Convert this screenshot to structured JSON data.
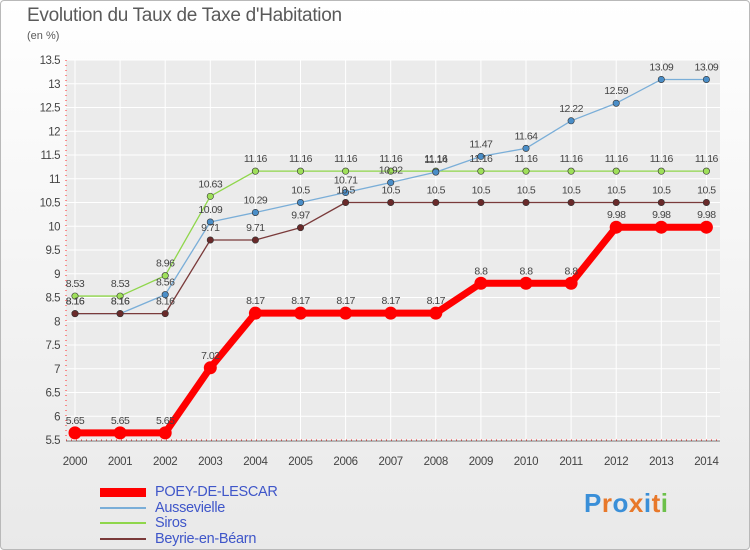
{
  "header": {
    "title": "Evolution du Taux de Taxe d'Habitation",
    "subtitle": "(en %)"
  },
  "logo": {
    "text": "Proxiti",
    "letters": [
      "P",
      "r",
      "o",
      "x",
      "i",
      "t",
      "i"
    ],
    "colors": [
      "#3a8fd8",
      "#e8782a",
      "#3a8fd8",
      "#e8782a",
      "#3a8fd8",
      "#e8782a",
      "#6cc04a"
    ]
  },
  "chart_data": {
    "type": "line",
    "title": "Evolution du Taux de Taxe d'Habitation",
    "ylabel": "(en %)",
    "xlabel": "",
    "x": [
      2000,
      2001,
      2002,
      2003,
      2004,
      2005,
      2006,
      2007,
      2008,
      2009,
      2010,
      2011,
      2012,
      2013,
      2014
    ],
    "ylim": [
      5.5,
      13.5
    ],
    "yticks": [
      5.5,
      6,
      6.5,
      7,
      7.5,
      8,
      8.5,
      9,
      9.5,
      10,
      10.5,
      11,
      11.5,
      12,
      12.5,
      13,
      13.5
    ],
    "ytick_labels": [
      "5.5",
      "6",
      "6.5",
      "7",
      "7.5",
      "8",
      "8.5",
      "9",
      "9.5",
      "10",
      "10.5",
      "11",
      "11.5",
      "12",
      "12.5",
      "13",
      "13.5"
    ],
    "grid": true,
    "legend_position": "bottom-left",
    "series": [
      {
        "name": "Siros",
        "color": "#8fd64b",
        "marker": "#9fe05a",
        "values": [
          8.53,
          8.53,
          8.96,
          10.63,
          11.16,
          11.16,
          11.16,
          11.16,
          11.16,
          11.16,
          11.16,
          11.16,
          11.16,
          11.16,
          11.16
        ],
        "labels": [
          "8.53",
          "8.53",
          "8.96",
          "10.63",
          "11.16",
          "11.16",
          "11.16",
          "11.16",
          "11.16",
          "11.16",
          "11.16",
          "11.16",
          "11.16",
          "11.16",
          "11.16"
        ]
      },
      {
        "name": "Aussevielle",
        "color": "#7aaed8",
        "marker": "#4a8ec8",
        "values": [
          8.16,
          8.16,
          8.56,
          10.09,
          10.29,
          10.5,
          10.71,
          10.92,
          11.14,
          11.47,
          11.64,
          12.22,
          12.59,
          13.09,
          13.09
        ],
        "labels": [
          "8.16",
          "8.16",
          "8.56",
          "10.09",
          "10.29",
          "10.5",
          "10.71",
          "10.92",
          "11.14",
          "11.47",
          "11.64",
          "12.22",
          "12.59",
          "13.09",
          "13.09"
        ]
      },
      {
        "name": "Beyrie-en-Béarn",
        "color": "#7a3a3a",
        "marker": "#6a2a2a",
        "values": [
          8.16,
          8.16,
          8.16,
          9.71,
          9.71,
          9.97,
          10.5,
          10.5,
          10.5,
          10.5,
          10.5,
          10.5,
          10.5,
          10.5,
          10.5
        ],
        "labels": [
          "8.16",
          "8.16",
          "8.16",
          "9.71",
          "9.71",
          "9.97",
          "10.5",
          "10.5",
          "10.5",
          "10.5",
          "10.5",
          "10.5",
          "10.5",
          "10.5",
          "10.5"
        ]
      },
      {
        "name": "POEY-DE-LESCAR",
        "color": "#ff0000",
        "marker": "#ff0000",
        "values": [
          5.65,
          5.65,
          5.65,
          7.02,
          8.17,
          8.17,
          8.17,
          8.17,
          8.17,
          8.8,
          8.8,
          8.8,
          9.98,
          9.98,
          9.98
        ],
        "labels": [
          "5.65",
          "5.65",
          "5.65",
          "7.02",
          "8.17",
          "8.17",
          "8.17",
          "8.17",
          "8.17",
          "8.8",
          "8.8",
          "8.8",
          "9.98",
          "9.98",
          "9.98"
        ]
      }
    ],
    "legend_order": [
      "POEY-DE-LESCAR",
      "Aussevielle",
      "Siros",
      "Beyrie-en-Béarn"
    ]
  }
}
